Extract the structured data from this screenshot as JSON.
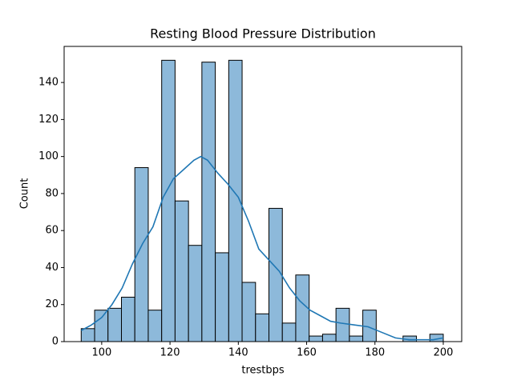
{
  "chart_data": {
    "type": "histogram",
    "title": "Resting Blood Pressure Distribution",
    "xlabel": "trestbps",
    "ylabel": "Count",
    "bins": [
      94,
      97.93,
      101.85,
      105.78,
      109.7,
      113.63,
      117.56,
      121.48,
      125.41,
      129.33,
      133.26,
      137.19,
      141.11,
      145.04,
      148.96,
      152.89,
      156.81,
      160.74,
      164.67,
      168.59,
      172.52,
      176.44,
      180.37,
      184.3,
      188.22,
      192.15,
      196.07,
      200
    ],
    "counts": [
      7,
      17,
      18,
      24,
      94,
      17,
      152,
      76,
      52,
      151,
      48,
      152,
      32,
      15,
      72,
      10,
      36,
      3,
      4,
      18,
      3,
      17,
      0,
      0,
      3,
      0,
      4
    ],
    "color": "#8db9da",
    "edgecolor": "#000000",
    "kde": {
      "color": "#1f77b4",
      "x": [
        94,
        97,
        100,
        103,
        106,
        109,
        112,
        115,
        118,
        121,
        124,
        127,
        129,
        131,
        134,
        137,
        140,
        143,
        146,
        149,
        152,
        155,
        158,
        161,
        164,
        167,
        170,
        174,
        178,
        182,
        186,
        190,
        194,
        197,
        200
      ],
      "y": [
        6,
        9,
        13,
        20,
        29,
        42,
        53,
        62,
        78,
        88,
        93,
        98,
        100,
        98,
        91,
        85,
        78,
        65,
        50,
        44,
        38,
        29,
        22,
        17,
        14,
        11,
        10,
        9,
        8,
        5,
        2,
        1,
        1,
        1,
        2
      ]
    },
    "xlim": [
      89,
      205.4
    ],
    "ylim": [
      0,
      159.5
    ],
    "xticks": [
      100,
      120,
      140,
      160,
      180,
      200
    ],
    "yticks": [
      0,
      20,
      40,
      60,
      80,
      100,
      120,
      140
    ]
  }
}
